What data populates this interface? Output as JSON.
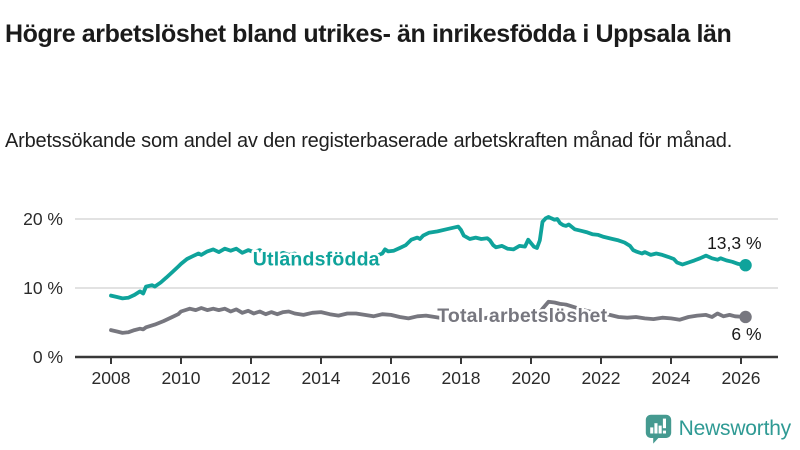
{
  "header": {
    "title": "Högre arbetslöshet bland utrikes- än inrikesfödda i Uppsala län",
    "subtitle": "Arbetssökande som andel av den registerbaserade arbetskraften månad för månad."
  },
  "footer": {
    "brand": "Newsworthy",
    "logo_icon": "newsworthy-bar-chart-exclamation-bubble"
  },
  "colors": {
    "foreign_born_line": "#0fa39b",
    "total_line": "#77777f",
    "grid": "#d8d8d8",
    "axis": "#383838",
    "tick_text": "#2b2b2b",
    "value_text": "#1a1a1a",
    "brand_teal": "#2f9a94",
    "logo_fill": "#459a90"
  },
  "chart_data": {
    "type": "line",
    "title": "Högre arbetslöshet bland utrikes- än inrikesfödda i Uppsala län",
    "subtitle": "Arbetssökande som andel av den registerbaserade arbetskraften månad för månad.",
    "xlabel": "",
    "ylabel": "",
    "grid": "horizontal",
    "legend_position": "inline-labels",
    "x_axis": {
      "ticks": [
        2008,
        2010,
        2012,
        2014,
        2016,
        2018,
        2020,
        2022,
        2024,
        2026
      ]
    },
    "y_axis": {
      "min": 0,
      "max": 22,
      "ticks": [
        {
          "value": 0,
          "label": "0 %"
        },
        {
          "value": 10,
          "label": "10 %"
        },
        {
          "value": 20,
          "label": "20 %"
        }
      ]
    },
    "series": [
      {
        "name": "Utlandsfödda",
        "color": "#0fa39b",
        "inline_label": {
          "text": "Utlandsfödda",
          "x": 2012.05,
          "y": 14.3
        },
        "value_label": {
          "text": "13,3 %",
          "side": "above"
        },
        "end_value": 13.3,
        "points": [
          [
            2008.0,
            8.9
          ],
          [
            2008.17,
            8.7
          ],
          [
            2008.33,
            8.5
          ],
          [
            2008.5,
            8.6
          ],
          [
            2008.67,
            9.0
          ],
          [
            2008.83,
            9.5
          ],
          [
            2008.92,
            9.2
          ],
          [
            2009.0,
            10.2
          ],
          [
            2009.17,
            10.4
          ],
          [
            2009.25,
            10.2
          ],
          [
            2009.42,
            10.8
          ],
          [
            2009.58,
            11.5
          ],
          [
            2009.75,
            12.3
          ],
          [
            2009.92,
            13.1
          ],
          [
            2010.0,
            13.5
          ],
          [
            2010.17,
            14.2
          ],
          [
            2010.33,
            14.6
          ],
          [
            2010.5,
            15.0
          ],
          [
            2010.58,
            14.8
          ],
          [
            2010.75,
            15.3
          ],
          [
            2010.92,
            15.6
          ],
          [
            2011.08,
            15.2
          ],
          [
            2011.25,
            15.7
          ],
          [
            2011.42,
            15.4
          ],
          [
            2011.58,
            15.7
          ],
          [
            2011.75,
            15.1
          ],
          [
            2011.92,
            15.5
          ],
          [
            2012.08,
            15.2
          ],
          [
            2012.25,
            15.5
          ],
          [
            2012.42,
            14.9
          ],
          [
            2012.58,
            15.2
          ],
          [
            2012.75,
            14.8
          ],
          [
            2012.92,
            15.1
          ],
          [
            2013.08,
            14.8
          ],
          [
            2013.25,
            15.0
          ],
          [
            2013.5,
            14.3
          ],
          [
            2013.75,
            14.6
          ],
          [
            2014.0,
            14.4
          ],
          [
            2014.25,
            13.8
          ],
          [
            2014.42,
            13.5
          ],
          [
            2014.67,
            13.9
          ],
          [
            2014.83,
            14.2
          ],
          [
            2015.0,
            14.6
          ],
          [
            2015.25,
            14.8
          ],
          [
            2015.5,
            14.5
          ],
          [
            2015.75,
            15.0
          ],
          [
            2015.83,
            15.6
          ],
          [
            2015.92,
            15.3
          ],
          [
            2016.08,
            15.4
          ],
          [
            2016.25,
            15.8
          ],
          [
            2016.42,
            16.2
          ],
          [
            2016.58,
            17.0
          ],
          [
            2016.75,
            17.3
          ],
          [
            2016.83,
            17.1
          ],
          [
            2016.92,
            17.6
          ],
          [
            2017.08,
            18.0
          ],
          [
            2017.33,
            18.2
          ],
          [
            2017.58,
            18.5
          ],
          [
            2017.83,
            18.8
          ],
          [
            2017.92,
            18.9
          ],
          [
            2018.0,
            18.4
          ],
          [
            2018.08,
            17.6
          ],
          [
            2018.25,
            17.1
          ],
          [
            2018.42,
            17.3
          ],
          [
            2018.58,
            17.1
          ],
          [
            2018.75,
            17.2
          ],
          [
            2018.83,
            16.9
          ],
          [
            2018.92,
            16.2
          ],
          [
            2019.0,
            15.9
          ],
          [
            2019.17,
            16.1
          ],
          [
            2019.33,
            15.7
          ],
          [
            2019.5,
            15.6
          ],
          [
            2019.67,
            16.1
          ],
          [
            2019.83,
            16.0
          ],
          [
            2019.92,
            17.0
          ],
          [
            2020.08,
            16.0
          ],
          [
            2020.17,
            15.8
          ],
          [
            2020.25,
            16.9
          ],
          [
            2020.33,
            19.6
          ],
          [
            2020.42,
            20.1
          ],
          [
            2020.5,
            20.3
          ],
          [
            2020.58,
            20.1
          ],
          [
            2020.67,
            19.9
          ],
          [
            2020.75,
            20.0
          ],
          [
            2020.83,
            19.4
          ],
          [
            2020.92,
            19.1
          ],
          [
            2021.0,
            19.0
          ],
          [
            2021.08,
            19.2
          ],
          [
            2021.25,
            18.5
          ],
          [
            2021.42,
            18.3
          ],
          [
            2021.58,
            18.1
          ],
          [
            2021.75,
            17.8
          ],
          [
            2021.92,
            17.7
          ],
          [
            2022.08,
            17.4
          ],
          [
            2022.33,
            17.1
          ],
          [
            2022.5,
            16.9
          ],
          [
            2022.67,
            16.6
          ],
          [
            2022.83,
            16.1
          ],
          [
            2022.92,
            15.5
          ],
          [
            2023.0,
            15.3
          ],
          [
            2023.17,
            15.0
          ],
          [
            2023.25,
            15.2
          ],
          [
            2023.42,
            14.8
          ],
          [
            2023.58,
            15.0
          ],
          [
            2023.75,
            14.8
          ],
          [
            2023.92,
            14.5
          ],
          [
            2024.08,
            14.2
          ],
          [
            2024.17,
            13.7
          ],
          [
            2024.33,
            13.4
          ],
          [
            2024.5,
            13.7
          ],
          [
            2024.67,
            14.0
          ],
          [
            2024.83,
            14.3
          ],
          [
            2025.0,
            14.7
          ],
          [
            2025.17,
            14.3
          ],
          [
            2025.33,
            14.1
          ],
          [
            2025.42,
            14.3
          ],
          [
            2025.58,
            14.0
          ],
          [
            2025.75,
            13.8
          ],
          [
            2025.92,
            13.5
          ],
          [
            2026.13,
            13.3
          ]
        ]
      },
      {
        "name": "Total arbetslöshet",
        "color": "#77777f",
        "inline_label": {
          "text": "Total arbetslöshet",
          "x": 2017.32,
          "y": 6.1
        },
        "value_label": {
          "text": "6 %",
          "side": "below"
        },
        "end_value": 6,
        "points": [
          [
            2008.0,
            3.9
          ],
          [
            2008.17,
            3.7
          ],
          [
            2008.33,
            3.5
          ],
          [
            2008.5,
            3.6
          ],
          [
            2008.67,
            3.9
          ],
          [
            2008.83,
            4.1
          ],
          [
            2008.92,
            4.0
          ],
          [
            2009.0,
            4.3
          ],
          [
            2009.25,
            4.7
          ],
          [
            2009.5,
            5.2
          ],
          [
            2009.75,
            5.8
          ],
          [
            2009.92,
            6.2
          ],
          [
            2010.0,
            6.6
          ],
          [
            2010.25,
            7.0
          ],
          [
            2010.42,
            6.8
          ],
          [
            2010.58,
            7.1
          ],
          [
            2010.75,
            6.8
          ],
          [
            2010.92,
            7.0
          ],
          [
            2011.08,
            6.8
          ],
          [
            2011.25,
            7.0
          ],
          [
            2011.42,
            6.6
          ],
          [
            2011.58,
            6.9
          ],
          [
            2011.75,
            6.4
          ],
          [
            2011.92,
            6.7
          ],
          [
            2012.08,
            6.3
          ],
          [
            2012.25,
            6.6
          ],
          [
            2012.42,
            6.2
          ],
          [
            2012.58,
            6.5
          ],
          [
            2012.75,
            6.2
          ],
          [
            2012.92,
            6.5
          ],
          [
            2013.08,
            6.6
          ],
          [
            2013.25,
            6.3
          ],
          [
            2013.5,
            6.1
          ],
          [
            2013.75,
            6.4
          ],
          [
            2014.0,
            6.5
          ],
          [
            2014.25,
            6.2
          ],
          [
            2014.5,
            6.0
          ],
          [
            2014.75,
            6.3
          ],
          [
            2015.0,
            6.3
          ],
          [
            2015.25,
            6.1
          ],
          [
            2015.5,
            5.9
          ],
          [
            2015.75,
            6.2
          ],
          [
            2016.0,
            6.1
          ],
          [
            2016.25,
            5.8
          ],
          [
            2016.5,
            5.6
          ],
          [
            2016.75,
            5.9
          ],
          [
            2017.0,
            6.0
          ],
          [
            2017.25,
            5.8
          ],
          [
            2017.5,
            5.6
          ],
          [
            2017.75,
            5.9
          ],
          [
            2018.0,
            5.8
          ],
          [
            2018.25,
            5.6
          ],
          [
            2018.5,
            5.5
          ],
          [
            2018.75,
            5.7
          ],
          [
            2019.0,
            5.6
          ],
          [
            2019.25,
            5.4
          ],
          [
            2019.5,
            5.3
          ],
          [
            2019.75,
            5.6
          ],
          [
            2020.0,
            5.8
          ],
          [
            2020.17,
            5.9
          ],
          [
            2020.33,
            7.0
          ],
          [
            2020.5,
            8.0
          ],
          [
            2020.67,
            7.9
          ],
          [
            2020.83,
            7.7
          ],
          [
            2021.0,
            7.6
          ],
          [
            2021.25,
            7.2
          ],
          [
            2021.5,
            6.8
          ],
          [
            2021.75,
            6.5
          ],
          [
            2022.0,
            6.3
          ],
          [
            2022.25,
            6.1
          ],
          [
            2022.5,
            5.8
          ],
          [
            2022.75,
            5.7
          ],
          [
            2023.0,
            5.8
          ],
          [
            2023.25,
            5.6
          ],
          [
            2023.5,
            5.5
          ],
          [
            2023.75,
            5.7
          ],
          [
            2024.0,
            5.6
          ],
          [
            2024.25,
            5.4
          ],
          [
            2024.5,
            5.8
          ],
          [
            2024.75,
            6.0
          ],
          [
            2025.0,
            6.1
          ],
          [
            2025.17,
            5.8
          ],
          [
            2025.33,
            6.3
          ],
          [
            2025.5,
            5.9
          ],
          [
            2025.67,
            6.1
          ],
          [
            2025.83,
            5.9
          ],
          [
            2026.13,
            5.8
          ]
        ]
      }
    ]
  }
}
